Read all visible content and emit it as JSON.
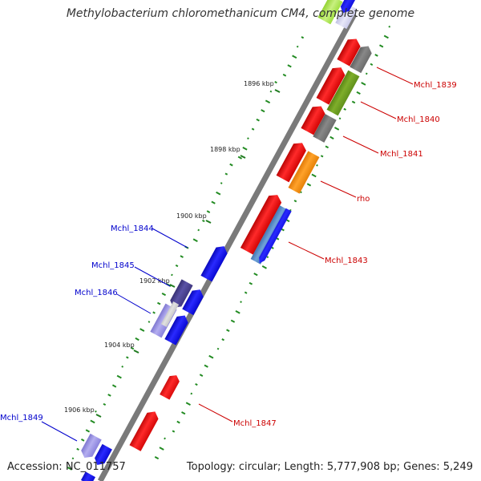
{
  "title": "Methylobacterium chloromethanicum CM4, complete genome",
  "accession": "Accession: NC_011757",
  "topology": "Topology: circular; Length: 5,777,908 bp; Genes: 5,249",
  "ticks": [
    {
      "label": "1896 kbp"
    },
    {
      "label": "1898 kbp"
    },
    {
      "label": "1900 kbp"
    },
    {
      "label": "1902 kbp"
    },
    {
      "label": "1904 kbp"
    },
    {
      "label": "1906 kbp"
    }
  ],
  "gene_labels": {
    "mchl_1839": "Mchl_1839",
    "mchl_1840": "Mchl_1840",
    "mchl_1841": "Mchl_1841",
    "rho": "rho",
    "mchl_1843": "Mchl_1843",
    "mchl_1844": "Mchl_1844",
    "mchl_1845": "Mchl_1845",
    "mchl_1846": "Mchl_1846",
    "mchl_1847": "Mchl_1847",
    "mchl_1849": "Mchl_1849"
  },
  "colors": {
    "forward_gene": "#ff0000",
    "reverse_gene": "#0000ff",
    "backbone": "#888888",
    "gc_marks": "#228b22",
    "label_forward": "#cc0000",
    "label_reverse": "#0000cc"
  }
}
